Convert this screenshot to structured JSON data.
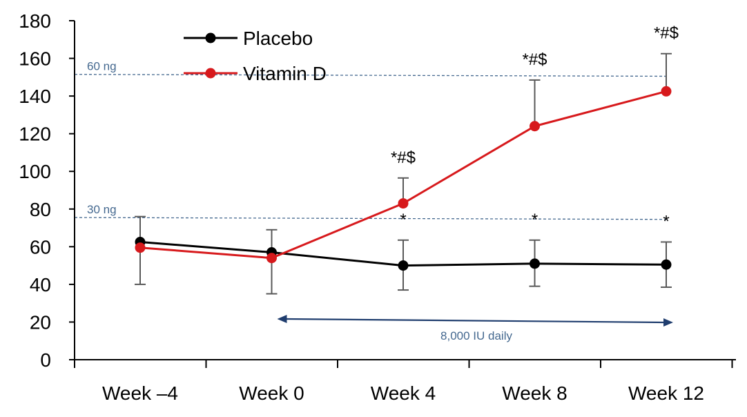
{
  "chart_data": {
    "type": "line",
    "title": "",
    "xlabel": "",
    "ylabel": "",
    "ylim": [
      0,
      180
    ],
    "yticks": [
      0,
      20,
      40,
      60,
      80,
      100,
      120,
      140,
      160,
      180
    ],
    "grid": false,
    "legend": {
      "placement": "top-left"
    },
    "categories": [
      "Week –4",
      "Week 0",
      "Week 4",
      "Week 8",
      "Week 12"
    ],
    "series": [
      {
        "name": "Placebo",
        "color": "#000000",
        "values": [
          62.5,
          57,
          50,
          51,
          50.5
        ],
        "error_low": [
          40,
          35,
          37,
          39,
          38.5
        ],
        "error_high": [
          76,
          69,
          63.5,
          63.5,
          62.5
        ],
        "annotations": [
          null,
          null,
          "*",
          "*",
          "*"
        ]
      },
      {
        "name": "Vitamin D",
        "color": "#d7191c",
        "values": [
          59.5,
          54,
          83,
          124,
          142.5
        ],
        "error_low": null,
        "error_high": [
          null,
          null,
          96.5,
          148.5,
          162.5
        ],
        "annotations": [
          null,
          null,
          "*#$",
          "*#$",
          "*#$"
        ]
      }
    ],
    "reference_lines": [
      {
        "label": "60 ng",
        "y_start": 151.5,
        "y_end": 150.5,
        "color": "#44688f"
      },
      {
        "label": "30 ng",
        "y_start": 75.5,
        "y_end": 74.5,
        "color": "#44688f"
      }
    ],
    "dosing_arrow": {
      "label": "8,000 IU daily",
      "from_category": "Week 0",
      "to_category": "Week 12",
      "color": "#1f3d6e",
      "label_color": "#44688f"
    },
    "axis_color": "#000000",
    "errorbar_color": "#595959"
  }
}
